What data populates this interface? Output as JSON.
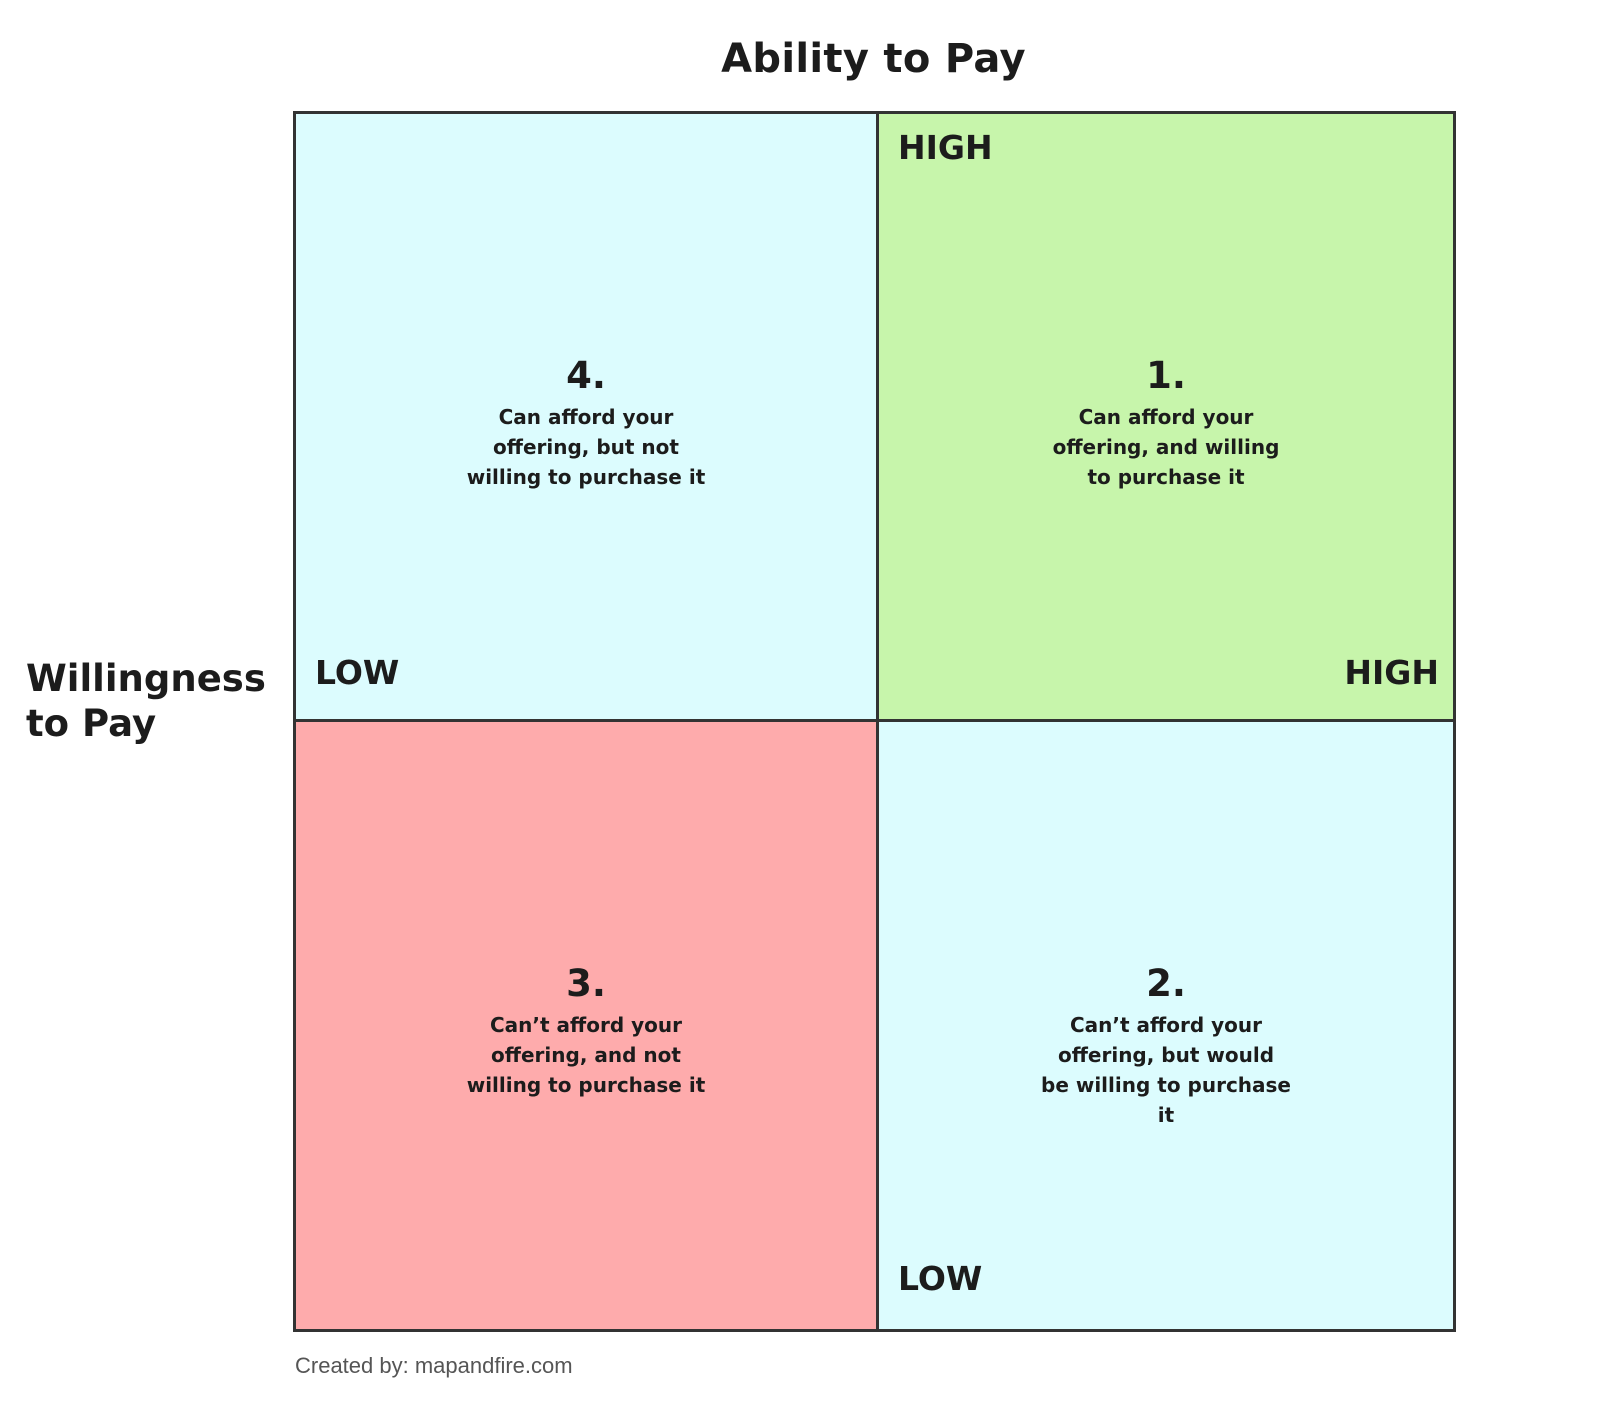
{
  "titles": {
    "x_axis": "Ability to Pay",
    "y_axis_line1": "Willingness",
    "y_axis_line2": "to Pay"
  },
  "colors": {
    "blue_quadrant": "#dcfcfe",
    "green_quadrant": "#c7f5ab",
    "red_quadrant": "#feabac",
    "border": "#333333",
    "text": "#1c1c1c"
  },
  "quadrants": [
    {
      "number": "1.",
      "description": "Can afford your offering, and willing to purchase it",
      "color": "#c7f5ab"
    },
    {
      "number": "2.",
      "description": "Can’t afford your offering, but would be willing to purchase it",
      "color": "#dcfcfe"
    },
    {
      "number": "3.",
      "description": "Can’t afford your offering, and not willing to purchase it",
      "color": "#feabac"
    },
    {
      "number": "4.",
      "description": "Can afford your offering, but not willing to purchase it",
      "color": "#dcfcfe"
    }
  ],
  "axis_levels": {
    "willingness_high": "HIGH",
    "willingness_low": "LOW",
    "ability_high": "HIGH",
    "ability_low": "LOW"
  },
  "credit": "Created by: mapandfire.com"
}
